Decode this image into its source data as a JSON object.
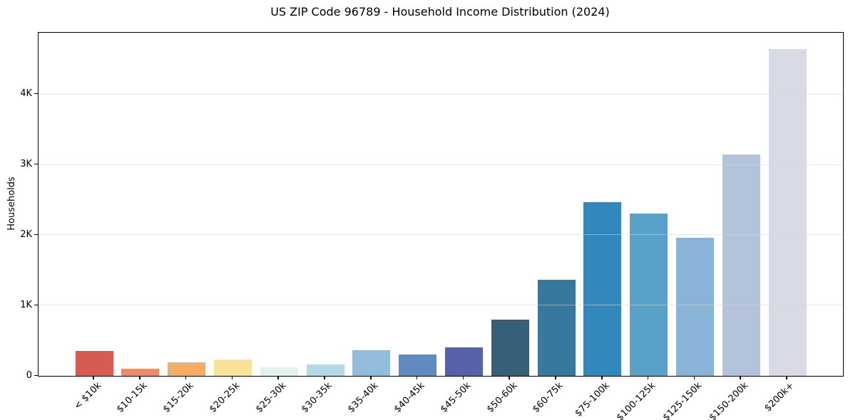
{
  "chart_data": {
    "type": "bar",
    "title": "US ZIP Code 96789 - Household Income Distribution (2024)",
    "xlabel": "",
    "ylabel": "Households",
    "categories": [
      "< $10k",
      "$10-15k",
      "$15-20k",
      "$20-25k",
      "$25-30k",
      "$30-35k",
      "$35-40k",
      "$40-45k",
      "$45-50k",
      "$50-60k",
      "$60-75k",
      "$75-100k",
      "$100-125k",
      "$125-150k",
      "$150-200k",
      "$200k+"
    ],
    "values": [
      355,
      105,
      190,
      235,
      125,
      165,
      365,
      300,
      410,
      800,
      1370,
      2475,
      2310,
      1965,
      3150,
      4645
    ],
    "bar_colors": [
      "#d65b50",
      "#f08a64",
      "#f7ac63",
      "#fae398",
      "#e3f1ee",
      "#b3d9e6",
      "#92bcdb",
      "#6189c2",
      "#5761a8",
      "#365f78",
      "#37789f",
      "#3287bd",
      "#58a1c8",
      "#8ab4d7",
      "#b3c3dc",
      "#d8dae6"
    ],
    "ylim": [
      0,
      4880
    ],
    "yticks": [
      {
        "value": 0,
        "label": "0"
      },
      {
        "value": 1000,
        "label": "1K"
      },
      {
        "value": 2000,
        "label": "2K"
      },
      {
        "value": 3000,
        "label": "3K"
      },
      {
        "value": 4000,
        "label": "4K"
      }
    ],
    "grid": "horizontal, drawn above bars",
    "legend": "none",
    "colors": {
      "background": "#ffffff",
      "axis": "#000000",
      "text": "#000000",
      "gridline": "#e6e6e6"
    }
  }
}
